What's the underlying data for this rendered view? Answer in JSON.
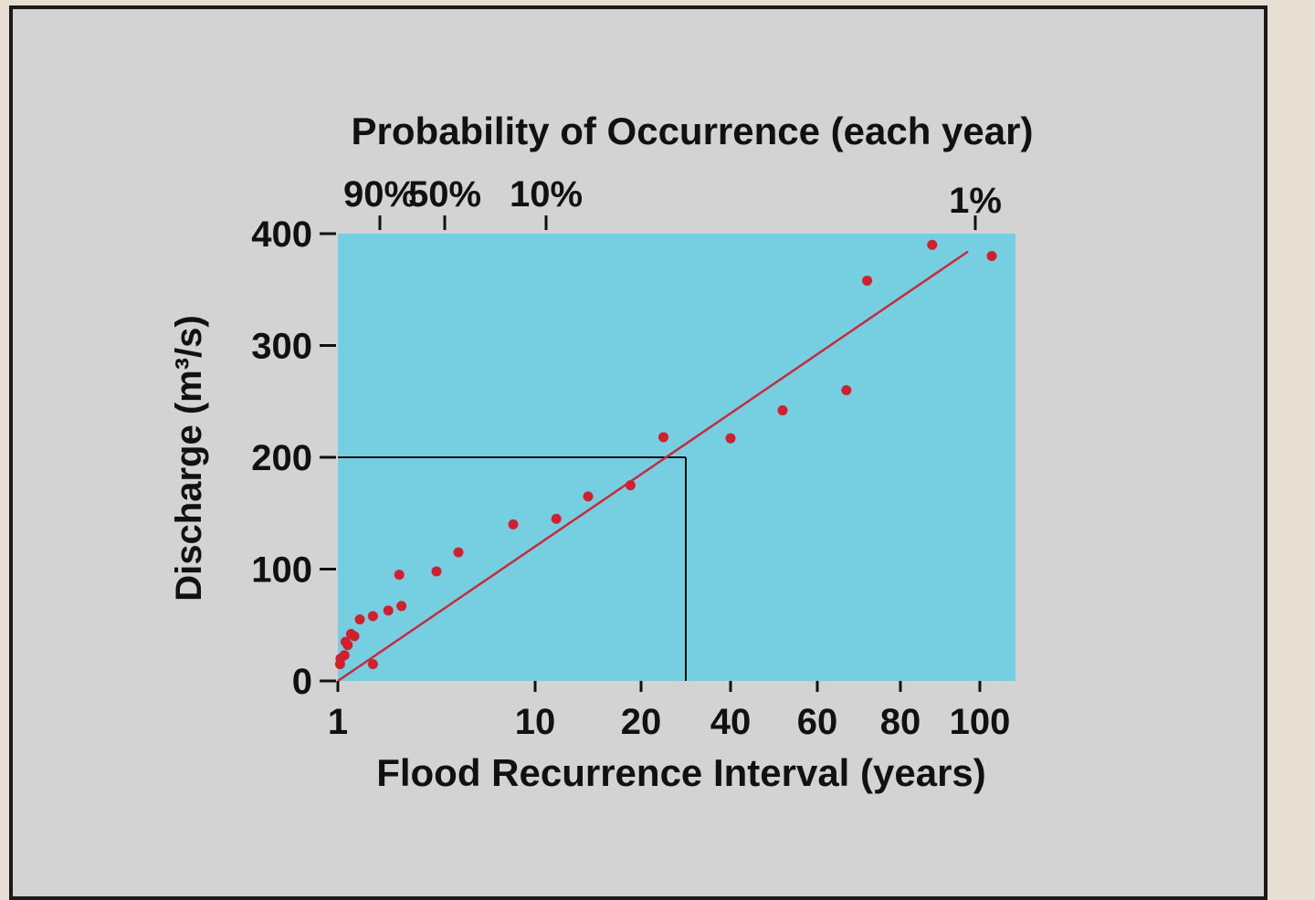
{
  "chart_data": {
    "type": "scatter",
    "top_title": "Probability of Occurrence (each year)",
    "xlabel": "Flood Recurrence Interval (years)",
    "ylabel": "Discharge (m³/s)",
    "ylim": [
      0,
      400
    ],
    "yticks": [
      {
        "value": 0,
        "label": "0"
      },
      {
        "value": 100,
        "label": "100"
      },
      {
        "value": 200,
        "label": "200"
      },
      {
        "value": 300,
        "label": "300"
      },
      {
        "value": 400,
        "label": "400"
      }
    ],
    "xticks": [
      {
        "value": 1,
        "label": "1"
      },
      {
        "value": 10,
        "label": "10"
      },
      {
        "value": 20,
        "label": "20"
      },
      {
        "value": 40,
        "label": "40"
      },
      {
        "value": 60,
        "label": "60"
      },
      {
        "value": 80,
        "label": "80"
      },
      {
        "value": 100,
        "label": "100"
      }
    ],
    "top_ticks": [
      {
        "value": 1.11,
        "label": "90%"
      },
      {
        "value": 2,
        "label": "50%"
      },
      {
        "value": 10,
        "label": "10%"
      },
      {
        "value": 100,
        "label": "1%"
      }
    ],
    "series": [
      {
        "points": [
          [
            1.1,
            15
          ],
          [
            1.12,
            20
          ],
          [
            1.3,
            23
          ],
          [
            1.35,
            35
          ],
          [
            1.45,
            32
          ],
          [
            1.6,
            42
          ],
          [
            1.75,
            40
          ],
          [
            2.0,
            55
          ],
          [
            2.6,
            58
          ],
          [
            2.6,
            15
          ],
          [
            3.3,
            63
          ],
          [
            3.8,
            95
          ],
          [
            3.9,
            67
          ],
          [
            5.5,
            98
          ],
          [
            6.5,
            115
          ],
          [
            9,
            140
          ],
          [
            12,
            145
          ],
          [
            15,
            165
          ],
          [
            19,
            175
          ],
          [
            25,
            218
          ],
          [
            40,
            217
          ],
          [
            52,
            242
          ],
          [
            67,
            260
          ],
          [
            72,
            358
          ],
          [
            88,
            390
          ],
          [
            103,
            380
          ]
        ]
      }
    ],
    "trend_line": {
      "from": [
        1,
        0
      ],
      "to": [
        97,
        384
      ]
    },
    "reference": {
      "x": 30,
      "y": 200
    },
    "colors": {
      "plot_bg": "#76cfe0",
      "point": "#d11f2e",
      "trend": "#c92a3b",
      "reference": "#111111",
      "panel_bg": "#d3d3d3"
    }
  }
}
